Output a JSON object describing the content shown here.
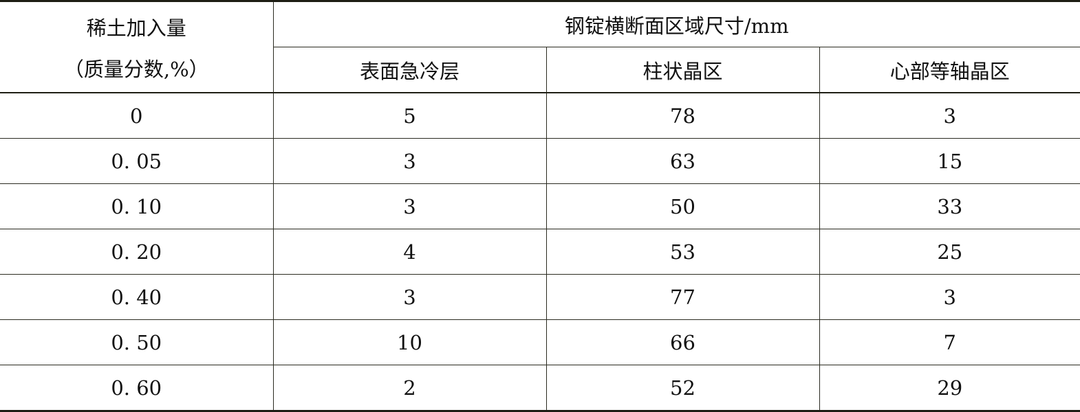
{
  "table": {
    "row_header_line1": "稀土加入量",
    "row_header_line2": "（质量分数,%）",
    "group_header": "钢锭横断面区域尺寸/mm",
    "columns": [
      "表面急冷层",
      "柱状晶区",
      "心部等轴晶区"
    ],
    "rows": [
      [
        "0",
        "5",
        "78",
        "3"
      ],
      [
        "0. 05",
        "3",
        "63",
        "15"
      ],
      [
        "0. 10",
        "3",
        "50",
        "33"
      ],
      [
        "0. 20",
        "4",
        "53",
        "25"
      ],
      [
        "0. 40",
        "3",
        "77",
        "3"
      ],
      [
        "0. 50",
        "10",
        "66",
        "7"
      ],
      [
        "0. 60",
        "2",
        "52",
        "29"
      ]
    ]
  }
}
